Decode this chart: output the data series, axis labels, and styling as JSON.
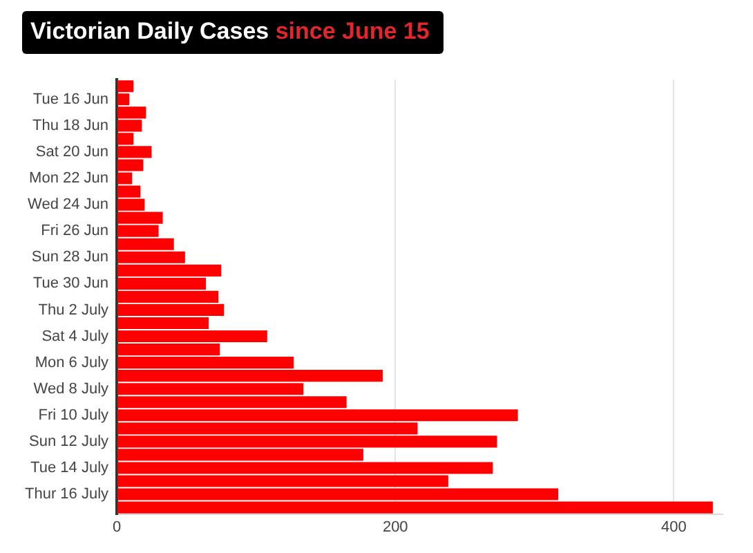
{
  "chart_data": {
    "type": "bar",
    "orientation": "horizontal",
    "title": "Victorian Daily Cases",
    "subtitle": "since June 15",
    "categories": [
      null,
      "Tue 16 Jun",
      null,
      "Thu 18 Jun",
      null,
      "Sat 20 Jun",
      null,
      "Mon 22 Jun",
      null,
      "Wed 24 Jun",
      null,
      "Fri 26 Jun",
      null,
      "Sun 28 Jun",
      null,
      "Tue 30 Jun",
      null,
      "Thu 2 July",
      null,
      "Sat 4 July",
      null,
      "Mon 6 July",
      null,
      "Wed 8 July",
      null,
      "Fri 10 July",
      null,
      "Sun 12 July",
      null,
      "Tue 14 July",
      null,
      "Thur 16 July",
      null
    ],
    "values": [
      12,
      9,
      21,
      18,
      12,
      25,
      19,
      11,
      17,
      20,
      33,
      30,
      41,
      49,
      75,
      64,
      73,
      77,
      66,
      108,
      74,
      127,
      191,
      134,
      165,
      288,
      216,
      273,
      177,
      270,
      238,
      317,
      428
    ],
    "color": "#ff0000",
    "xlim": [
      0,
      435
    ],
    "xticks": [
      0,
      200,
      400
    ],
    "grid": "x"
  }
}
